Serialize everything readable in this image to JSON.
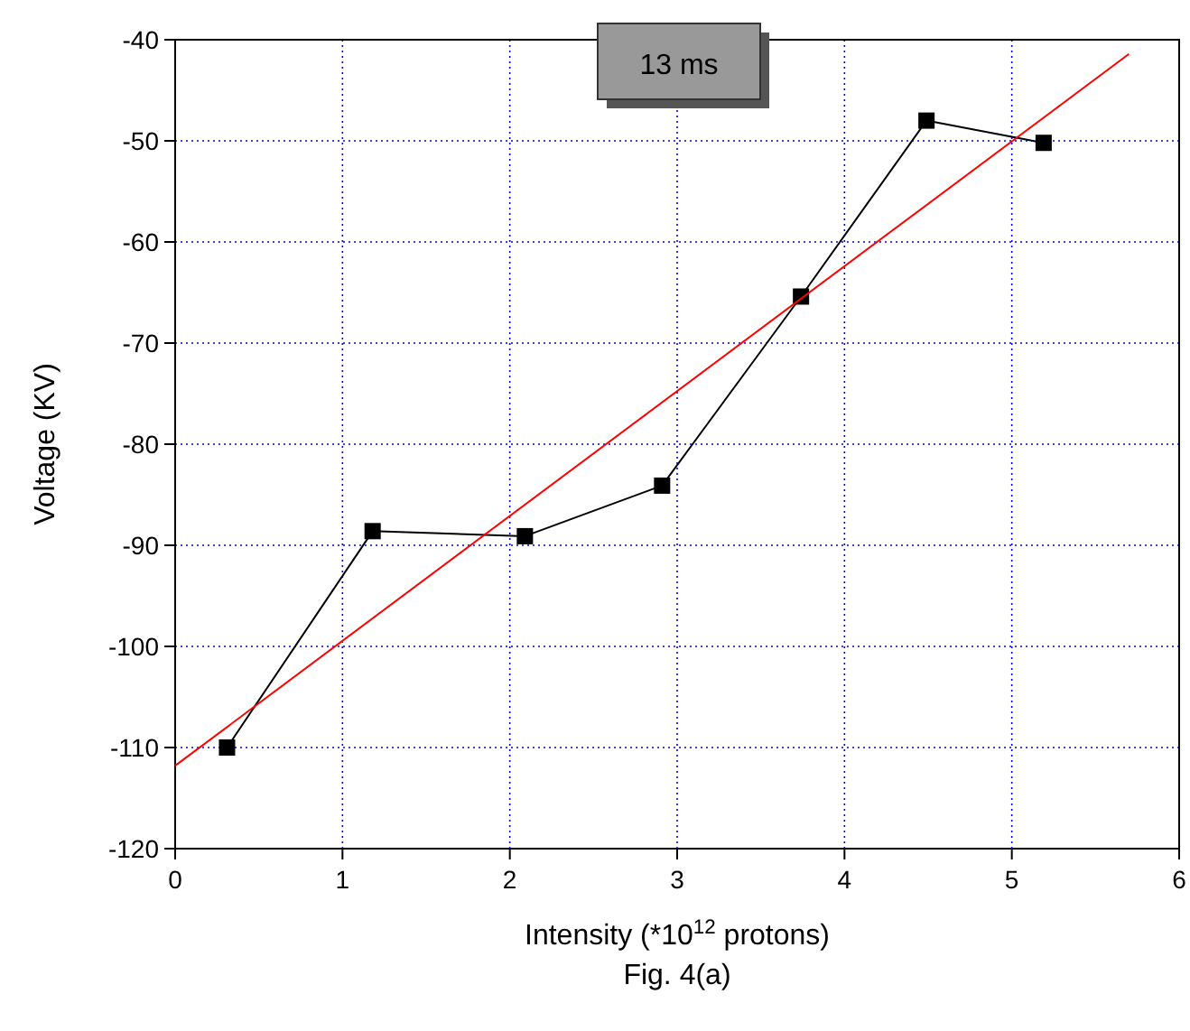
{
  "chart_data": {
    "type": "line",
    "xlabel": "Intensity (*10$^{12}$ protons)",
    "ylabel": "Voltage (KV)",
    "xlim": [
      0,
      6
    ],
    "ylim": [
      -120,
      -40
    ],
    "xticks": [
      0,
      1,
      2,
      3,
      4,
      5,
      6
    ],
    "yticks": [
      -120,
      -110,
      -100,
      -90,
      -80,
      -70,
      -60,
      -50,
      -40
    ],
    "grid": true,
    "annotations": [
      "13 ms",
      "Fig. 4(a)"
    ],
    "series": [
      {
        "type": "line",
        "color": "#000000",
        "marker": "square",
        "x": [
          0.31,
          1.18,
          2.09,
          2.91,
          3.74,
          4.49,
          5.19
        ],
        "values": [
          -110,
          -88.6,
          -89.1,
          -84.1,
          -65.4,
          -48,
          -50.2
        ]
      },
      {
        "type": "line",
        "color": "#ff0000",
        "marker": "none",
        "x": [
          0,
          5.7
        ],
        "values": [
          -111.8,
          -41.4
        ]
      }
    ]
  }
}
